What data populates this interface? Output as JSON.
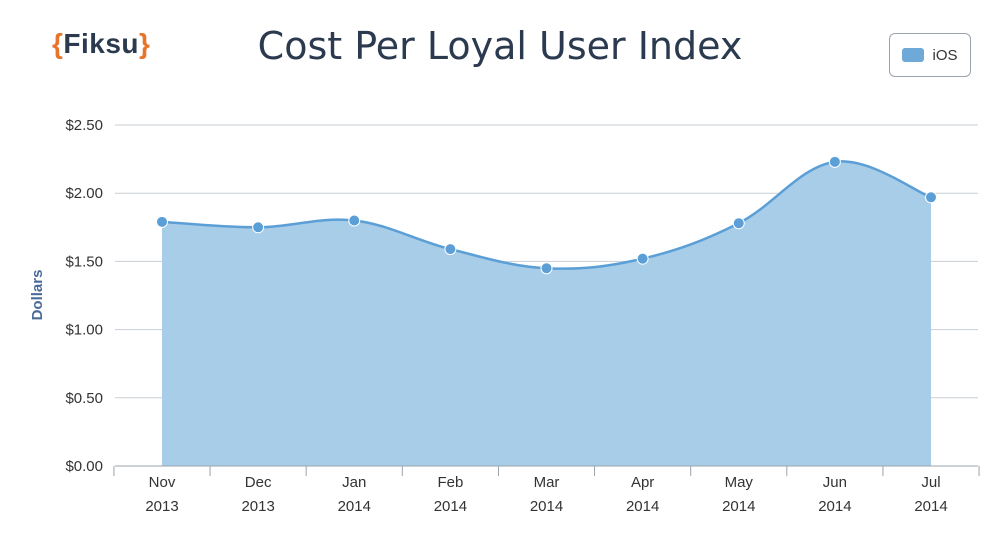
{
  "header": {
    "logo_text": "Fiksu",
    "title": "Cost Per Loyal User Index"
  },
  "legend": {
    "label": "iOS"
  },
  "colors": {
    "area": "#a8cde8",
    "line": "#5b9fd6",
    "point": "#5b9fd6",
    "grid": "#c9cfd6",
    "axis": "#9aa3ad"
  },
  "chart_data": {
    "type": "area",
    "title": "Cost Per Loyal User Index",
    "xlabel": "",
    "ylabel": "Dollars",
    "ylim": [
      0,
      2.5
    ],
    "yticks": [
      {
        "value": 0.0,
        "label": "$0.00"
      },
      {
        "value": 0.5,
        "label": "$0.50"
      },
      {
        "value": 1.0,
        "label": "$1.00"
      },
      {
        "value": 1.5,
        "label": "$1.50"
      },
      {
        "value": 2.0,
        "label": "$2.00"
      },
      {
        "value": 2.5,
        "label": "$2.50"
      }
    ],
    "categories": [
      [
        "Nov",
        "2013"
      ],
      [
        "Dec",
        "2013"
      ],
      [
        "Jan",
        "2014"
      ],
      [
        "Feb",
        "2014"
      ],
      [
        "Mar",
        "2014"
      ],
      [
        "Apr",
        "2014"
      ],
      [
        "May",
        "2014"
      ],
      [
        "Jun",
        "2014"
      ],
      [
        "Jul",
        "2014"
      ]
    ],
    "series": [
      {
        "name": "iOS",
        "values": [
          1.79,
          1.75,
          1.8,
          1.59,
          1.45,
          1.52,
          1.78,
          2.23,
          1.97
        ]
      }
    ],
    "grid": true,
    "legend_position": "top-right"
  }
}
